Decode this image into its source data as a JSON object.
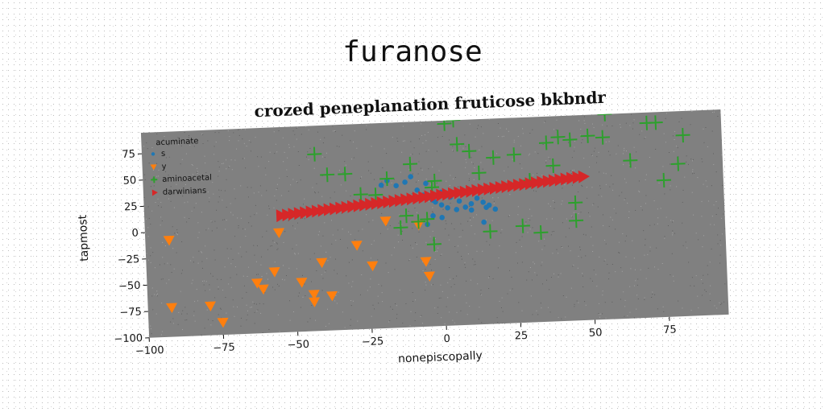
{
  "figure": {
    "suptitle": "furanose"
  },
  "chart_data": {
    "type": "scatter",
    "title": "crozed peneplanation fruticose bkbndr",
    "xlabel": "nonepiscopally",
    "ylabel": "tapmost",
    "xlim": [
      -100,
      95
    ],
    "ylim": [
      -100,
      95
    ],
    "xticks": [
      -100,
      -75,
      -50,
      -25,
      0,
      25,
      50,
      75
    ],
    "yticks": [
      -100,
      -75,
      -50,
      -25,
      0,
      25,
      50,
      75
    ],
    "grid": false,
    "legend": {
      "title": "acuminate",
      "placement": "top-left"
    },
    "background": "#808080",
    "series": [
      {
        "name": "s",
        "marker": "circle",
        "color": "#1f77b4",
        "points": [
          [
            -20,
            36
          ],
          [
            -18,
            40
          ],
          [
            -15,
            35
          ],
          [
            -12,
            38
          ],
          [
            -10,
            43
          ],
          [
            -8,
            30
          ],
          [
            -6,
            25
          ],
          [
            -5,
            36
          ],
          [
            -3,
            20
          ],
          [
            -2,
            18
          ],
          [
            0,
            15
          ],
          [
            0,
            27
          ],
          [
            2,
            12
          ],
          [
            3,
            22
          ],
          [
            5,
            10
          ],
          [
            6,
            18
          ],
          [
            8,
            12
          ],
          [
            10,
            9
          ],
          [
            10,
            15
          ],
          [
            12,
            20
          ],
          [
            14,
            16
          ],
          [
            15,
            11
          ],
          [
            16,
            13
          ],
          [
            18,
            9
          ],
          [
            -3,
            5
          ],
          [
            -5,
            -3
          ],
          [
            0,
            3
          ],
          [
            14,
            -3
          ]
        ]
      },
      {
        "name": "y",
        "marker": "triangle-down",
        "color": "#ff7f0e",
        "points": [
          [
            -92,
            -8
          ],
          [
            -92,
            -72
          ],
          [
            -79,
            -72
          ],
          [
            -75,
            -88
          ],
          [
            -63,
            -52
          ],
          [
            -61,
            -58
          ],
          [
            -57,
            -42
          ],
          [
            -55,
            -5
          ],
          [
            -48,
            -53
          ],
          [
            -44,
            -65
          ],
          [
            -44,
            -72
          ],
          [
            -38,
            -67
          ],
          [
            -41,
            -35
          ],
          [
            -29,
            -20
          ],
          [
            -24,
            -40
          ],
          [
            -19,
            2
          ],
          [
            -8,
            -3
          ],
          [
            -6,
            -38
          ],
          [
            -5,
            -52
          ]
        ]
      },
      {
        "name": "aminoacetal",
        "marker": "plus",
        "color": "#2ca02c",
        "points": [
          [
            -42,
            68
          ],
          [
            -38,
            48
          ],
          [
            -32,
            48
          ],
          [
            -27,
            28
          ],
          [
            -22,
            27
          ],
          [
            -18,
            42
          ],
          [
            -14,
            -5
          ],
          [
            -12,
            6
          ],
          [
            -10,
            55
          ],
          [
            -8,
            0
          ],
          [
            -5,
            2
          ],
          [
            -3,
            -22
          ],
          [
            -3,
            32
          ],
          [
            -2,
            38
          ],
          [
            2,
            92
          ],
          [
            5,
            95
          ],
          [
            6,
            72
          ],
          [
            10,
            65
          ],
          [
            13,
            44
          ],
          [
            16,
            -12
          ],
          [
            18,
            58
          ],
          [
            25,
            60
          ],
          [
            27,
            -8
          ],
          [
            30,
            35
          ],
          [
            33,
            -15
          ],
          [
            36,
            70
          ],
          [
            38,
            48
          ],
          [
            40,
            75
          ],
          [
            44,
            72
          ],
          [
            45,
            -5
          ],
          [
            45,
            12
          ],
          [
            50,
            75
          ],
          [
            55,
            73
          ],
          [
            56,
            95
          ],
          [
            64,
            50
          ],
          [
            70,
            85
          ],
          [
            73,
            85
          ],
          [
            75,
            30
          ],
          [
            80,
            45
          ],
          [
            82,
            72
          ]
        ]
      },
      {
        "name": "darwinians",
        "marker": "triangle-right",
        "color": "#d62728",
        "points": [
          [
            -54,
            11
          ],
          [
            -52,
            11.5
          ],
          [
            -50,
            12
          ],
          [
            -48,
            12.5
          ],
          [
            -46,
            13
          ],
          [
            -44,
            13.5
          ],
          [
            -42,
            14
          ],
          [
            -40,
            14.5
          ],
          [
            -38,
            15
          ],
          [
            -36,
            15.5
          ],
          [
            -34,
            16
          ],
          [
            -32,
            16.5
          ],
          [
            -30,
            17
          ],
          [
            -28,
            17.5
          ],
          [
            -26,
            18
          ],
          [
            -24,
            18.5
          ],
          [
            -22,
            19
          ],
          [
            -20,
            19.5
          ],
          [
            -18,
            20
          ],
          [
            -16,
            20.5
          ],
          [
            -14,
            21
          ],
          [
            -12,
            21.5
          ],
          [
            -10,
            22
          ],
          [
            -8,
            22.5
          ],
          [
            -6,
            23
          ],
          [
            -4,
            23.5
          ],
          [
            -2,
            24
          ],
          [
            0,
            24.5
          ],
          [
            2,
            25
          ],
          [
            4,
            25.5
          ],
          [
            6,
            26
          ],
          [
            8,
            26.5
          ],
          [
            10,
            27
          ],
          [
            12,
            27.5
          ],
          [
            14,
            28
          ],
          [
            16,
            28.5
          ],
          [
            18,
            29
          ],
          [
            20,
            29.5
          ],
          [
            22,
            30
          ],
          [
            24,
            30.5
          ],
          [
            26,
            31
          ],
          [
            28,
            31.5
          ],
          [
            30,
            32
          ],
          [
            32,
            32.5
          ],
          [
            34,
            33
          ],
          [
            36,
            33.5
          ],
          [
            38,
            34
          ],
          [
            40,
            34.5
          ],
          [
            42,
            35
          ],
          [
            44,
            35.5
          ],
          [
            46,
            36
          ],
          [
            48,
            36.5
          ]
        ]
      }
    ]
  }
}
